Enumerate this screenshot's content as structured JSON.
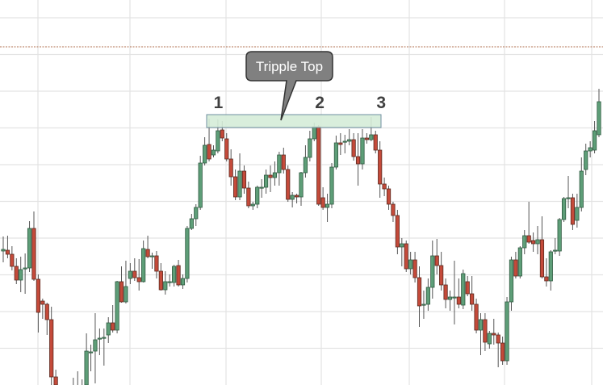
{
  "chart_data": {
    "type": "candlestick",
    "title": "",
    "xlabel": "",
    "ylabel": "",
    "ylim": [
      0.3,
      48
    ],
    "grid": true,
    "colors": {
      "up": "#5e9e78",
      "up_border": "#2f5a40",
      "down": "#c44a3a",
      "down_border": "#5c2a20",
      "wick": "#555555",
      "grid": "#e3e3e3",
      "reference_line": "#b07050",
      "zone_fill": "#d5ecd8",
      "zone_border": "#6f8fa0",
      "callout_fill": "#808080",
      "callout_border": "#333333"
    },
    "candle_fields": [
      "open",
      "high",
      "low",
      "close"
    ],
    "candles": [
      [
        16.9,
        18.7,
        15.5,
        17.1
      ],
      [
        17.0,
        18.8,
        16.0,
        16.5
      ],
      [
        16.5,
        17.5,
        14.5,
        15.0
      ],
      [
        15.0,
        16.0,
        12.8,
        13.3
      ],
      [
        13.3,
        16.2,
        11.8,
        14.6
      ],
      [
        14.7,
        16.6,
        11.6,
        14.8
      ],
      [
        14.8,
        20.6,
        14.3,
        19.7
      ],
      [
        19.7,
        21.8,
        13.2,
        13.4
      ],
      [
        13.4,
        14.0,
        6.8,
        9.3
      ],
      [
        10.7,
        11.0,
        8.5,
        10.3
      ],
      [
        10.3,
        10.5,
        6.5,
        8.4
      ],
      [
        8.4,
        10.0,
        0.3,
        1.3
      ],
      [
        1.3,
        2.2,
        -1.0,
        -0.5
      ],
      [
        -0.5,
        0.2,
        -2.0,
        -1.2
      ],
      [
        -1.2,
        -0.5,
        -2.5,
        -1.8
      ],
      [
        -1.8,
        -0.2,
        -2.5,
        -1.0
      ],
      [
        -1.0,
        1.2,
        -1.5,
        -0.5
      ],
      [
        -0.5,
        2.0,
        -1.5,
        -0.2
      ],
      [
        -0.2,
        1.0,
        -1.0,
        0.3
      ],
      [
        0.3,
        6.7,
        0.0,
        4.5
      ],
      [
        4.4,
        5.3,
        2.0,
        4.4
      ],
      [
        4.5,
        9.2,
        0.5,
        5.9
      ],
      [
        6.0,
        7.3,
        4.0,
        6.1
      ],
      [
        6.1,
        7.3,
        2.7,
        6.2
      ],
      [
        6.5,
        8.7,
        5.5,
        8.0
      ],
      [
        8.0,
        10.2,
        6.8,
        7.1
      ],
      [
        7.1,
        13.2,
        6.7,
        13.1
      ],
      [
        13.1,
        15.0,
        10.5,
        10.6
      ],
      [
        10.6,
        15.7,
        10.4,
        12.5
      ],
      [
        13.5,
        15.4,
        12.8,
        14.4
      ],
      [
        14.4,
        16.0,
        13.2,
        13.6
      ],
      [
        13.6,
        15.9,
        12.0,
        13.1
      ],
      [
        13.1,
        18.2,
        13.0,
        17.2
      ],
      [
        17.1,
        18.8,
        16.0,
        16.2
      ],
      [
        16.2,
        16.7,
        14.7,
        16.3
      ],
      [
        16.3,
        16.9,
        13.5,
        14.4
      ],
      [
        14.4,
        15.4,
        12.0,
        12.1
      ],
      [
        12.1,
        14.4,
        11.5,
        13.1
      ],
      [
        13.0,
        14.0,
        12.5,
        13.1
      ],
      [
        13.0,
        15.2,
        12.5,
        15.0
      ],
      [
        15.1,
        15.8,
        12.5,
        12.7
      ],
      [
        12.7,
        14.0,
        12.2,
        13.5
      ],
      [
        13.5,
        20.0,
        13.0,
        19.7
      ],
      [
        19.7,
        21.5,
        19.5,
        20.9
      ],
      [
        20.9,
        22.7,
        20.0,
        22.3
      ],
      [
        22.3,
        28.7,
        22.0,
        27.8
      ],
      [
        27.8,
        31.0,
        27.5,
        30.0
      ],
      [
        30.1,
        33.3,
        28.0,
        28.3
      ],
      [
        28.8,
        30.0,
        28.5,
        29.4
      ],
      [
        29.3,
        33.2,
        29.0,
        31.8
      ],
      [
        31.9,
        33.0,
        30.5,
        30.9
      ],
      [
        30.8,
        31.5,
        28.0,
        28.3
      ],
      [
        28.3,
        29.5,
        25.0,
        26.1
      ],
      [
        26.1,
        27.0,
        23.2,
        23.6
      ],
      [
        23.6,
        29.0,
        23.2,
        26.8
      ],
      [
        26.8,
        27.5,
        24.0,
        24.7
      ],
      [
        24.7,
        25.5,
        22.2,
        22.5
      ],
      [
        22.5,
        23.0,
        22.0,
        22.7
      ],
      [
        22.7,
        25.0,
        22.2,
        24.8
      ],
      [
        24.8,
        25.8,
        23.5,
        24.8
      ],
      [
        24.8,
        27.0,
        24.0,
        26.3
      ],
      [
        26.3,
        27.5,
        24.2,
        26.0
      ],
      [
        26.0,
        28.0,
        25.0,
        26.6
      ],
      [
        26.6,
        29.2,
        25.0,
        28.8
      ],
      [
        28.8,
        29.7,
        26.5,
        27.0
      ],
      [
        27.0,
        27.5,
        23.0,
        23.3
      ],
      [
        23.3,
        24.2,
        22.3,
        23.8
      ],
      [
        23.8,
        24.0,
        22.8,
        23.6
      ],
      [
        23.6,
        26.7,
        22.5,
        26.6
      ],
      [
        26.6,
        30.0,
        26.0,
        28.5
      ],
      [
        28.5,
        31.8,
        28.0,
        30.8
      ],
      [
        30.8,
        32.8,
        30.5,
        32.3
      ],
      [
        32.3,
        32.5,
        22.5,
        22.7
      ],
      [
        23.5,
        24.8,
        22.0,
        22.3
      ],
      [
        22.3,
        24.0,
        20.5,
        22.7
      ],
      [
        22.7,
        27.8,
        22.2,
        27.3
      ],
      [
        27.3,
        31.2,
        27.0,
        30.3
      ],
      [
        30.3,
        31.5,
        28.8,
        30.1
      ],
      [
        30.5,
        31.3,
        29.0,
        30.5
      ],
      [
        30.5,
        32.0,
        30.0,
        30.7
      ],
      [
        30.7,
        31.5,
        28.1,
        28.6
      ],
      [
        28.6,
        31.5,
        25.0,
        27.7
      ],
      [
        27.7,
        32.0,
        27.0,
        30.9
      ],
      [
        30.9,
        31.5,
        30.2,
        30.7
      ],
      [
        30.7,
        33.5,
        30.5,
        31.3
      ],
      [
        31.3,
        31.8,
        29.0,
        29.4
      ],
      [
        29.4,
        30.5,
        23.5,
        25.2
      ],
      [
        25.2,
        26.0,
        23.7,
        24.6
      ],
      [
        24.6,
        25.0,
        22.0,
        22.7
      ],
      [
        22.7,
        23.0,
        20.5,
        21.3
      ],
      [
        21.3,
        22.0,
        16.5,
        17.4
      ],
      [
        17.4,
        18.5,
        15.0,
        17.8
      ],
      [
        17.8,
        18.2,
        14.3,
        14.7
      ],
      [
        14.7,
        16.8,
        14.0,
        15.8
      ],
      [
        15.8,
        16.8,
        13.0,
        13.6
      ],
      [
        13.6,
        15.0,
        7.5,
        10.1
      ],
      [
        10.2,
        12.0,
        8.5,
        10.3
      ],
      [
        10.3,
        13.5,
        9.5,
        12.4
      ],
      [
        12.4,
        18.2,
        11.0,
        16.3
      ],
      [
        16.3,
        18.4,
        14.0,
        15.1
      ],
      [
        15.1,
        16.8,
        12.0,
        12.7
      ],
      [
        12.7,
        13.5,
        9.8,
        10.9
      ],
      [
        10.9,
        12.0,
        9.5,
        11.2
      ],
      [
        11.2,
        15.7,
        7.8,
        11.2
      ],
      [
        11.2,
        13.5,
        9.8,
        10.3
      ],
      [
        10.2,
        14.6,
        9.7,
        14.1
      ],
      [
        13.1,
        13.8,
        11.3,
        11.6
      ],
      [
        11.6,
        13.8,
        9.5,
        10.3
      ],
      [
        10.3,
        11.0,
        6.7,
        7.1
      ],
      [
        7.1,
        9.2,
        4.0,
        8.4
      ],
      [
        8.4,
        9.2,
        4.5,
        5.6
      ],
      [
        5.4,
        7.0,
        4.8,
        6.7
      ],
      [
        6.7,
        8.5,
        5.3,
        6.5
      ],
      [
        6.5,
        6.8,
        2.5,
        5.5
      ],
      [
        5.5,
        6.3,
        2.8,
        3.3
      ],
      [
        3.3,
        11.2,
        2.8,
        10.6
      ],
      [
        10.6,
        16.2,
        9.5,
        15.8
      ],
      [
        15.8,
        16.8,
        13.5,
        13.8
      ],
      [
        13.8,
        17.5,
        13.5,
        17.3
      ],
      [
        17.3,
        19.5,
        16.5,
        18.8
      ],
      [
        18.8,
        23.0,
        17.8,
        18.0
      ],
      [
        18.2,
        19.2,
        16.8,
        17.8
      ],
      [
        17.8,
        20.0,
        16.5,
        18.3
      ],
      [
        18.3,
        21.2,
        13.5,
        13.7
      ],
      [
        13.7,
        16.0,
        12.5,
        13.2
      ],
      [
        13.2,
        17.0,
        12.0,
        16.8
      ],
      [
        16.9,
        18.5,
        16.5,
        17.0
      ],
      [
        16.9,
        21.0,
        16.3,
        20.8
      ],
      [
        20.8,
        23.6,
        20.5,
        23.4
      ],
      [
        23.5,
        26.2,
        22.2,
        23.5
      ],
      [
        23.5,
        24.0,
        19.5,
        20.2
      ],
      [
        20.7,
        24.0,
        19.8,
        22.3
      ],
      [
        22.3,
        28.5,
        21.8,
        26.8
      ],
      [
        27.0,
        30.2,
        26.3,
        29.3
      ],
      [
        29.3,
        30.5,
        28.5,
        29.7
      ],
      [
        29.4,
        33.0,
        29.0,
        31.8
      ],
      [
        31.3,
        37.0,
        31.0,
        35.4
      ]
    ],
    "reference_line": {
      "value": 42.2,
      "style": "dotted"
    },
    "resistance_zone": {
      "low": 32.2,
      "high": 33.8
    },
    "annotations": {
      "callout": "Tripple Top",
      "peaks": [
        {
          "label": "1",
          "candle": 48
        },
        {
          "label": "2",
          "candle": 73
        },
        {
          "label": "3",
          "candle": 85
        }
      ]
    }
  }
}
